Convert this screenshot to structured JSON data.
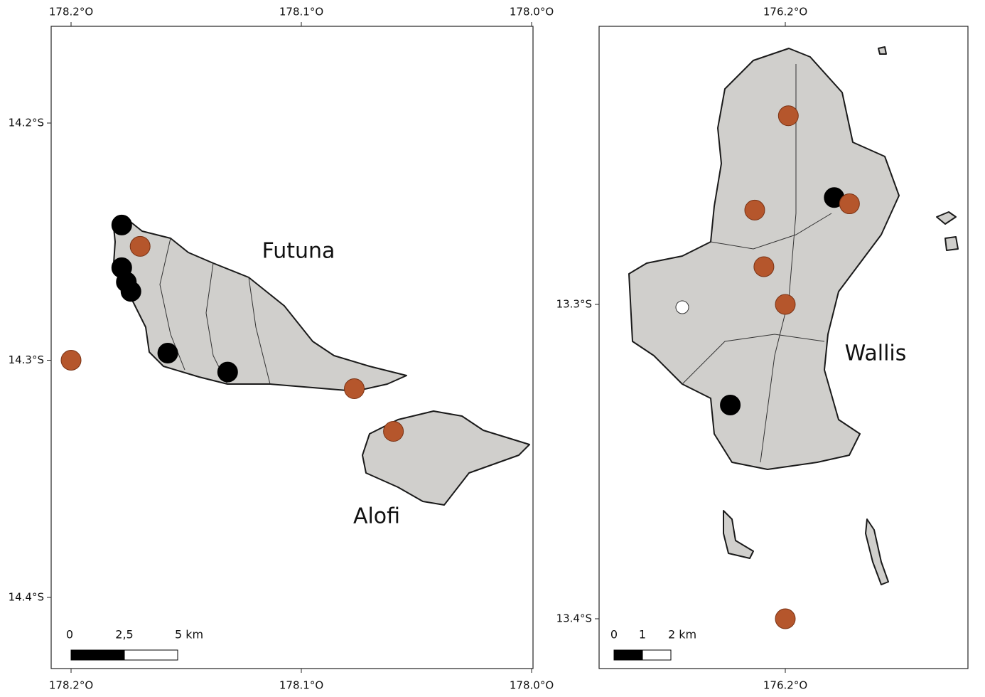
{
  "maps": [
    {
      "lon_ticks": [
        {
          "value": 178.2,
          "label": "178.2°O"
        },
        {
          "value": 178.1,
          "label": "178.1°O"
        },
        {
          "value": 178.0,
          "label": "178.0°O"
        }
      ],
      "lat_ticks": [
        {
          "value": 14.2,
          "label": "14.2°S"
        },
        {
          "value": 14.3,
          "label": "14.3°S"
        },
        {
          "value": 14.4,
          "label": "14.4°S"
        }
      ],
      "islands": [
        "Futuna",
        "Alofi"
      ],
      "scale_bar": [
        "0",
        "2,5",
        "5 km"
      ],
      "points": [
        {
          "lon": 178.178,
          "lat": 14.243,
          "color": "#000000"
        },
        {
          "lon": 178.178,
          "lat": 14.261,
          "color": "#000000"
        },
        {
          "lon": 178.176,
          "lat": 14.267,
          "color": "#000000"
        },
        {
          "lon": 178.174,
          "lat": 14.271,
          "color": "#000000"
        },
        {
          "lon": 178.158,
          "lat": 14.297,
          "color": "#000000"
        },
        {
          "lon": 178.132,
          "lat": 14.305,
          "color": "#000000"
        },
        {
          "lon": 178.17,
          "lat": 14.252,
          "color": "#b5562c"
        },
        {
          "lon": 178.2,
          "lat": 14.3,
          "color": "#b5562c"
        },
        {
          "lon": 178.077,
          "lat": 14.312,
          "color": "#b5562c"
        },
        {
          "lon": 178.06,
          "lat": 14.33,
          "color": "#b5562c"
        }
      ]
    },
    {
      "lon_ticks": [
        {
          "value": 176.2,
          "label": "176.2°O"
        }
      ],
      "lat_ticks": [
        {
          "value": 13.3,
          "label": "13.3°S"
        },
        {
          "value": 13.4,
          "label": "13.4°S"
        }
      ],
      "islands": [
        "Wallis"
      ],
      "scale_bar": [
        "0",
        "1",
        "2 km"
      ],
      "points": [
        {
          "lon": 176.184,
          "lat": 13.266,
          "color": "#000000"
        },
        {
          "lon": 176.218,
          "lat": 13.332,
          "color": "#000000"
        },
        {
          "lon": 176.199,
          "lat": 13.24,
          "color": "#b5562c"
        },
        {
          "lon": 176.21,
          "lat": 13.27,
          "color": "#b5562c"
        },
        {
          "lon": 176.179,
          "lat": 13.268,
          "color": "#b5562c"
        },
        {
          "lon": 176.207,
          "lat": 13.288,
          "color": "#b5562c"
        },
        {
          "lon": 176.2,
          "lat": 13.3,
          "color": "#b5562c"
        },
        {
          "lon": 176.2,
          "lat": 13.4,
          "color": "#b5562c"
        }
      ]
    }
  ]
}
